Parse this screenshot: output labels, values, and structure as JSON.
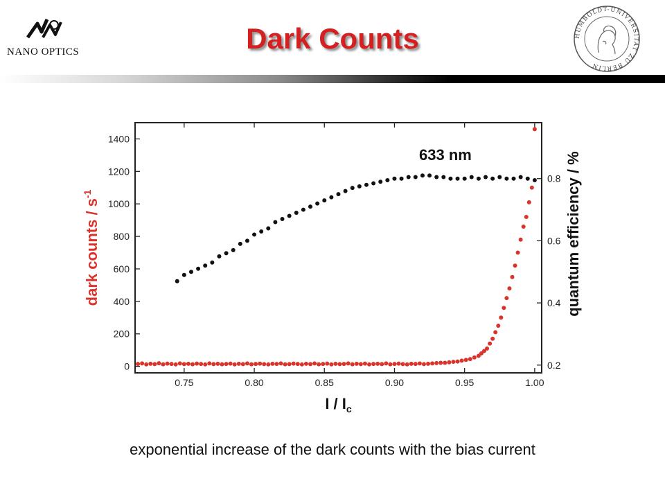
{
  "header": {
    "title": "Dark Counts",
    "logo_text": "NANO OPTICS",
    "seal_text": "HUMBOLDT-UNIVERSITÄT ZU BERLIN"
  },
  "caption": "exponential increase of the dark counts with the bias current",
  "colors": {
    "title": "#d42020",
    "dark_counts": "#d9342b",
    "quantum_efficiency": "#111111"
  },
  "chart_data": {
    "type": "scatter",
    "xlabel_main": "I / I",
    "xlabel_sub": "c",
    "ylabel_left": "dark counts / s",
    "ylabel_left_sup": "-1",
    "ylabel_right": "quantum efficiency / %",
    "annotation": "633 nm",
    "xlim": [
      0.715,
      1.005
    ],
    "ylim_left": [
      -40,
      1500
    ],
    "ylim_right": [
      0.175,
      0.98
    ],
    "x_ticks": [
      "0.75",
      "0.80",
      "0.85",
      "0.90",
      "0.95",
      "1.00"
    ],
    "y_left_ticks": [
      "0",
      "200",
      "400",
      "600",
      "800",
      "1000",
      "1200",
      "1400"
    ],
    "y_right_ticks": [
      "0.2",
      "0.4",
      "0.6",
      "0.8"
    ],
    "grid": false,
    "series": [
      {
        "axis": "left",
        "color": "#d9342b",
        "x": [
          0.717,
          0.72,
          0.723,
          0.726,
          0.729,
          0.732,
          0.735,
          0.738,
          0.741,
          0.744,
          0.747,
          0.75,
          0.753,
          0.756,
          0.759,
          0.762,
          0.765,
          0.768,
          0.771,
          0.774,
          0.777,
          0.78,
          0.783,
          0.786,
          0.789,
          0.792,
          0.795,
          0.798,
          0.801,
          0.804,
          0.807,
          0.81,
          0.813,
          0.816,
          0.819,
          0.822,
          0.825,
          0.828,
          0.831,
          0.834,
          0.837,
          0.84,
          0.843,
          0.846,
          0.849,
          0.852,
          0.855,
          0.858,
          0.861,
          0.864,
          0.867,
          0.87,
          0.873,
          0.876,
          0.879,
          0.882,
          0.885,
          0.888,
          0.891,
          0.894,
          0.897,
          0.9,
          0.903,
          0.906,
          0.909,
          0.912,
          0.915,
          0.918,
          0.921,
          0.924,
          0.927,
          0.93,
          0.933,
          0.936,
          0.939,
          0.942,
          0.945,
          0.948,
          0.951,
          0.954,
          0.957,
          0.96,
          0.962,
          0.964,
          0.966,
          0.968,
          0.97,
          0.972,
          0.974,
          0.976,
          0.978,
          0.98,
          0.982,
          0.984,
          0.986,
          0.988,
          0.99,
          0.992,
          0.994,
          0.996,
          0.998,
          1.0
        ],
        "y": [
          15,
          18,
          12,
          16,
          14,
          19,
          13,
          17,
          15,
          12,
          18,
          14,
          16,
          13,
          17,
          15,
          12,
          18,
          14,
          16,
          13,
          15,
          17,
          12,
          16,
          14,
          18,
          13,
          15,
          17,
          14,
          12,
          16,
          15,
          18,
          13,
          14,
          17,
          15,
          12,
          16,
          14,
          18,
          13,
          15,
          17,
          12,
          16,
          14,
          15,
          18,
          13,
          16,
          14,
          17,
          12,
          15,
          16,
          14,
          18,
          13,
          15,
          17,
          14,
          12,
          16,
          15,
          18,
          14,
          16,
          18,
          20,
          22,
          22,
          25,
          28,
          30,
          35,
          40,
          45,
          55,
          65,
          80,
          95,
          110,
          140,
          170,
          210,
          250,
          300,
          360,
          420,
          480,
          550,
          620,
          700,
          780,
          860,
          920,
          1010,
          1100,
          1460
        ]
      },
      {
        "axis": "right",
        "color": "#111111",
        "x": [
          0.745,
          0.75,
          0.755,
          0.76,
          0.765,
          0.77,
          0.775,
          0.78,
          0.785,
          0.79,
          0.795,
          0.8,
          0.805,
          0.81,
          0.815,
          0.82,
          0.825,
          0.83,
          0.835,
          0.84,
          0.845,
          0.85,
          0.855,
          0.86,
          0.865,
          0.87,
          0.875,
          0.88,
          0.885,
          0.89,
          0.895,
          0.9,
          0.905,
          0.91,
          0.915,
          0.92,
          0.925,
          0.93,
          0.935,
          0.94,
          0.945,
          0.95,
          0.955,
          0.96,
          0.965,
          0.97,
          0.975,
          0.98,
          0.985,
          0.99,
          0.995,
          1.0
        ],
        "y": [
          0.47,
          0.49,
          0.5,
          0.51,
          0.52,
          0.53,
          0.55,
          0.56,
          0.57,
          0.59,
          0.6,
          0.62,
          0.63,
          0.64,
          0.66,
          0.67,
          0.68,
          0.69,
          0.7,
          0.71,
          0.72,
          0.73,
          0.74,
          0.75,
          0.76,
          0.77,
          0.775,
          0.78,
          0.785,
          0.79,
          0.795,
          0.8,
          0.8,
          0.805,
          0.805,
          0.81,
          0.81,
          0.805,
          0.805,
          0.8,
          0.8,
          0.8,
          0.805,
          0.8,
          0.805,
          0.8,
          0.805,
          0.8,
          0.8,
          0.805,
          0.8,
          0.795
        ]
      }
    ]
  }
}
